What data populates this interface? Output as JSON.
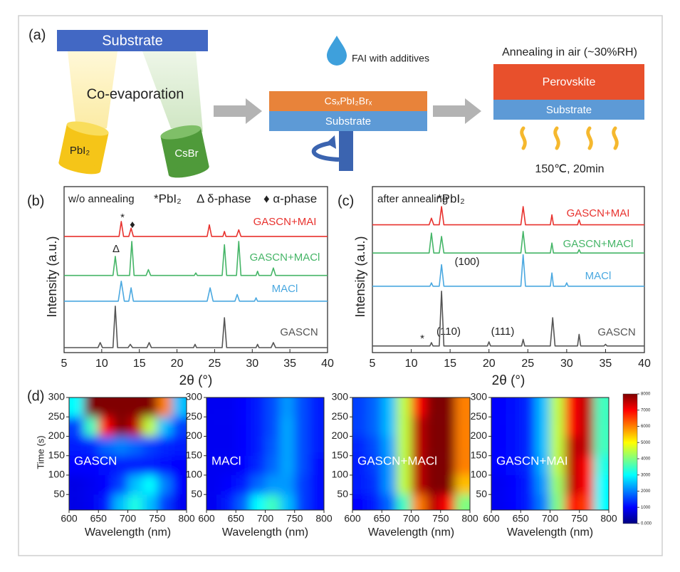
{
  "diagram": {
    "label": "(a)",
    "substrate_top": "Substrate",
    "coevaporation": "Co-evaporation",
    "source_1": "PbI₂",
    "source_2": "CsBr",
    "drop_label": "FAI with additives",
    "film_layer": "CsₓPbI₂Brₓ",
    "film_substrate": "Substrate",
    "anneal_title": "Annealing in air (~30%RH)",
    "perovskite": "Perovskite",
    "final_substrate": "Substrate",
    "anneal_condition": "150℃, 20min"
  },
  "chart_data": [
    {
      "type": "line",
      "label": "(b)",
      "header": [
        "w/o annealing",
        "*PbI₂",
        "Δ δ-phase",
        "♦ α-phase"
      ],
      "annotations": [
        "*",
        "♦",
        "Δ"
      ],
      "xlabel": "2θ (°)",
      "ylabel": "Intensity (a.u.)",
      "xlim": [
        5,
        40
      ],
      "xticks": [
        5,
        10,
        15,
        20,
        25,
        30,
        35,
        40
      ],
      "ylim": [
        0,
        100
      ],
      "series": [
        {
          "name": "GASCN+MAI",
          "color": "#e8322e",
          "x": [
            5,
            12.3,
            12.6,
            12.9,
            13.6,
            13.9,
            14.2,
            24,
            24.3,
            24.6,
            26.1,
            26.3,
            26.5,
            27.9,
            28.2,
            28.5,
            40
          ],
          "values": [
            70,
            70,
            79,
            70,
            70,
            75,
            70,
            70,
            77,
            70,
            70,
            73,
            70,
            70,
            74,
            70,
            70
          ]
        },
        {
          "name": "GASCN+MACl",
          "color": "#45b567",
          "x": [
            5,
            11.5,
            11.8,
            12.1,
            13.7,
            14,
            14.3,
            15.9,
            16.2,
            16.5,
            22.3,
            22.5,
            22.7,
            26,
            26.3,
            26.6,
            27.9,
            28.2,
            28.5,
            30.5,
            30.7,
            30.9,
            32.5,
            32.8,
            33.1,
            40
          ],
          "values": [
            46.5,
            46.5,
            58,
            46.5,
            46.5,
            67,
            46.5,
            46.5,
            50,
            46.5,
            46.5,
            48,
            46.5,
            46.5,
            65,
            46.5,
            46.5,
            67,
            46.5,
            46.5,
            49,
            46.5,
            46.5,
            51,
            46.5,
            46.5
          ]
        },
        {
          "name": "MACl",
          "color": "#4aa8e0",
          "x": [
            5,
            12.2,
            12.6,
            13,
            13.6,
            13.9,
            14.2,
            24,
            24.4,
            24.8,
            27.7,
            28,
            28.3,
            30.3,
            30.5,
            30.7,
            40
          ],
          "values": [
            31,
            31,
            43,
            31,
            31,
            39,
            31,
            31,
            39,
            31,
            31,
            35,
            31,
            31,
            33,
            31,
            31
          ]
        },
        {
          "name": "GASCN",
          "color": "#555555",
          "x": [
            5,
            9.5,
            9.8,
            10.1,
            11.5,
            11.8,
            12.1,
            13.5,
            13.8,
            14.1,
            16,
            16.3,
            16.6,
            22.2,
            22.4,
            22.6,
            26,
            26.3,
            26.6,
            30.5,
            30.7,
            30.9,
            32.5,
            32.8,
            33.1,
            40
          ],
          "values": [
            3,
            3,
            6,
            3,
            3,
            28,
            3,
            3,
            5,
            3,
            3,
            6,
            3,
            3,
            5,
            3,
            3,
            21,
            3,
            3,
            5,
            3,
            3,
            6,
            3,
            3
          ]
        }
      ]
    },
    {
      "type": "line",
      "label": "(c)",
      "header": [
        "after annealing",
        "*PbI₂"
      ],
      "annotations": [
        "(100)",
        "(110)",
        "(111)",
        "*"
      ],
      "xlabel": "2θ (°)",
      "ylabel": "Intensity (a.u.)",
      "xlim": [
        5,
        40
      ],
      "xticks": [
        5,
        10,
        15,
        20,
        25,
        30,
        35,
        40
      ],
      "ylim": [
        0,
        100
      ],
      "series": [
        {
          "name": "GASCN+MAI",
          "color": "#e8322e",
          "x": [
            5,
            12.3,
            12.6,
            12.9,
            13.6,
            13.9,
            14.2,
            24.1,
            24.4,
            24.7,
            27.9,
            28.1,
            28.3,
            31.4,
            31.6,
            31.8,
            40
          ],
          "values": [
            77,
            77,
            81,
            77,
            77,
            88,
            77,
            77,
            88,
            77,
            77,
            83,
            77,
            77,
            80,
            77,
            77
          ]
        },
        {
          "name": "GASCN+MACl",
          "color": "#45b567",
          "x": [
            5,
            12.3,
            12.6,
            12.9,
            13.6,
            13.9,
            14.2,
            24.1,
            24.4,
            24.7,
            27.9,
            28.1,
            28.3,
            31.4,
            31.6,
            31.8,
            40
          ],
          "values": [
            60,
            60,
            72,
            60,
            60,
            70,
            60,
            60,
            73,
            60,
            60,
            66,
            60,
            60,
            62,
            60,
            60
          ]
        },
        {
          "name": "MACl",
          "color": "#4aa8e0",
          "x": [
            5,
            12.4,
            12.6,
            12.8,
            13.6,
            13.9,
            14.2,
            24.1,
            24.4,
            24.7,
            27.9,
            28.1,
            28.3,
            29.8,
            30,
            30.2,
            40
          ],
          "values": [
            40,
            40,
            42,
            40,
            40,
            53,
            40,
            40,
            59,
            40,
            40,
            48,
            40,
            40,
            42,
            40,
            40
          ]
        },
        {
          "name": "GASCN",
          "color": "#555555",
          "x": [
            5,
            12.4,
            12.6,
            12.8,
            13.6,
            13.9,
            14.2,
            19.8,
            20,
            20.2,
            24.2,
            24.4,
            24.6,
            27.9,
            28.2,
            28.5,
            31.4,
            31.6,
            31.8,
            34.8,
            35,
            35.2,
            40
          ],
          "values": [
            4,
            4,
            6,
            4,
            4,
            37,
            4,
            4,
            6.5,
            4,
            4,
            8,
            4,
            4,
            21,
            4,
            4,
            11,
            4,
            4,
            5,
            4,
            4
          ]
        }
      ]
    },
    {
      "type": "heatmap",
      "label": "(d)",
      "name": "GASCN",
      "xlabel": "Wavelength (nm)",
      "ylabel": "Time (s)",
      "xlim": [
        600,
        800
      ],
      "xticks": [
        600,
        650,
        700,
        750,
        800
      ],
      "ylim": [
        10,
        300
      ],
      "yticks": [
        50,
        100,
        150,
        200,
        250,
        300
      ],
      "zlim": [
        0,
        8000
      ],
      "zticks": [
        {
          "value": 0,
          "label": "0.000"
        },
        1000,
        2000,
        3000,
        4000,
        5000,
        6000,
        7000,
        8000
      ],
      "x": [
        612.5,
        637.5,
        662.5,
        687.5,
        712.5,
        737.5,
        762.5,
        787.5
      ],
      "y": [
        275,
        225,
        175,
        125,
        75,
        25
      ],
      "z": [
        [
          3000,
          8000,
          8000,
          8000,
          8000,
          8000,
          6000,
          2500
        ],
        [
          1500,
          3500,
          7000,
          8000,
          7500,
          4500,
          2500,
          1500
        ],
        [
          1200,
          1300,
          1800,
          2000,
          1800,
          1500,
          1300,
          1200
        ],
        [
          1000,
          1000,
          1100,
          1200,
          1200,
          1200,
          1100,
          1000
        ],
        [
          800,
          900,
          1000,
          1500,
          2500,
          3000,
          2000,
          1000
        ],
        [
          800,
          900,
          1200,
          2500,
          3200,
          2500,
          1500,
          900
        ]
      ]
    },
    {
      "type": "heatmap",
      "name": "MACl",
      "xlabel": "Wavelength (nm)",
      "xlim": [
        600,
        800
      ],
      "xticks": [
        600,
        650,
        700,
        750,
        800
      ],
      "ylim": [
        10,
        300
      ],
      "yticks": [
        50,
        100,
        150,
        200,
        250,
        300
      ],
      "x": [
        612.5,
        637.5,
        662.5,
        687.5,
        712.5,
        737.5,
        762.5,
        787.5
      ],
      "y": [
        275,
        225,
        175,
        125,
        75,
        25
      ],
      "z": [
        [
          900,
          900,
          1000,
          1200,
          1600,
          2200,
          1600,
          1200
        ],
        [
          900,
          900,
          1000,
          1200,
          1600,
          2300,
          1600,
          1200
        ],
        [
          900,
          900,
          1000,
          1200,
          1700,
          2300,
          1600,
          1200
        ],
        [
          900,
          900,
          1000,
          1300,
          1800,
          2300,
          1600,
          1100
        ],
        [
          900,
          1000,
          1200,
          1800,
          2200,
          2200,
          1500,
          1100
        ],
        [
          900,
          1200,
          1800,
          3000,
          3500,
          2500,
          1500,
          1100
        ]
      ]
    },
    {
      "type": "heatmap",
      "name": "GASCN+MACl",
      "xlabel": "Wavelength (nm)",
      "xlim": [
        600,
        800
      ],
      "xticks": [
        600,
        650,
        700,
        750,
        800
      ],
      "ylim": [
        10,
        300
      ],
      "yticks": [
        50,
        100,
        150,
        200,
        250,
        300
      ],
      "x": [
        612.5,
        637.5,
        662.5,
        687.5,
        712.5,
        737.5,
        762.5,
        787.5
      ],
      "y": [
        275,
        225,
        175,
        125,
        75,
        25
      ],
      "z": [
        [
          1500,
          1800,
          2500,
          4500,
          7000,
          8000,
          8000,
          6000
        ],
        [
          1500,
          1800,
          2500,
          4500,
          7500,
          8000,
          8000,
          6000
        ],
        [
          1300,
          1600,
          2300,
          4500,
          7500,
          8000,
          8000,
          6000
        ],
        [
          1200,
          1500,
          2200,
          4500,
          7500,
          8000,
          8000,
          6000
        ],
        [
          1200,
          1400,
          2200,
          4500,
          7500,
          8000,
          8000,
          5500
        ],
        [
          1000,
          1200,
          1800,
          3500,
          6000,
          7500,
          7000,
          4000
        ]
      ]
    },
    {
      "type": "heatmap",
      "name": "GASCN+MAI",
      "xlabel": "Wavelength (nm)",
      "xlim": [
        600,
        800
      ],
      "xticks": [
        600,
        650,
        700,
        750,
        800
      ],
      "ylim": [
        10,
        300
      ],
      "yticks": [
        50,
        100,
        150,
        200,
        250,
        300
      ],
      "x": [
        612.5,
        637.5,
        662.5,
        687.5,
        712.5,
        737.5,
        762.5,
        787.5
      ],
      "y": [
        275,
        225,
        175,
        125,
        75,
        25
      ],
      "z": [
        [
          1000,
          1100,
          1300,
          2500,
          4500,
          7000,
          7500,
          3500
        ],
        [
          1000,
          1100,
          1300,
          2500,
          4500,
          7000,
          7500,
          3500
        ],
        [
          1000,
          1100,
          1300,
          2500,
          4500,
          7500,
          7500,
          3500
        ],
        [
          1000,
          1100,
          1300,
          2400,
          4500,
          7500,
          7000,
          3200
        ],
        [
          900,
          1000,
          1200,
          2200,
          4200,
          7500,
          7000,
          3000
        ],
        [
          900,
          1000,
          1200,
          2000,
          4000,
          7000,
          6500,
          3000
        ]
      ]
    }
  ]
}
